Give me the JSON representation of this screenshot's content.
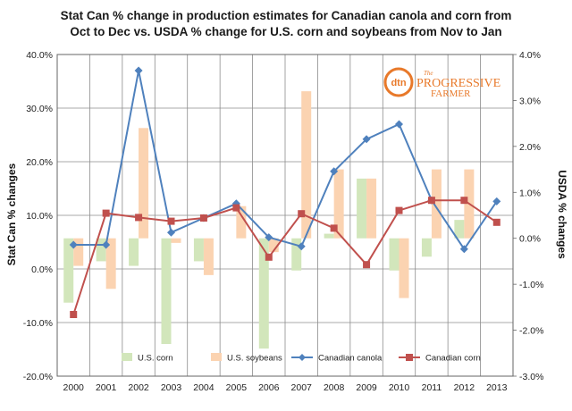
{
  "chart_data": {
    "type": "bar",
    "title_line1": "Stat Can %  change in production estimates for Canadian canola and corn from",
    "title_line2": "Oct to Dec vs. USDA %  change for U.S. corn and soybeans from Nov to Jan",
    "categories": [
      "2000",
      "2001",
      "2002",
      "2003",
      "2004",
      "2005",
      "2006",
      "2007",
      "2008",
      "2009",
      "2010",
      "2011",
      "2012",
      "2013"
    ],
    "y_left": {
      "label": "Stat Can %  changes",
      "min": -20,
      "max": 40,
      "step": 10,
      "ticks": [
        "-20.0%",
        "-10.0%",
        "0.0%",
        "10.0%",
        "20.0%",
        "30.0%",
        "40.0%"
      ]
    },
    "y_right": {
      "label": "USDA %  changes",
      "min": -3,
      "max": 4,
      "step": 1,
      "ticks": [
        "-3.0%",
        "-2.0%",
        "-1.0%",
        "0.0%",
        "1.0%",
        "2.0%",
        "3.0%",
        "4.0%"
      ]
    },
    "series": [
      {
        "name": "U.S. corn",
        "kind": "bar",
        "axis": "right",
        "color": "#d2e6bb",
        "values": [
          -1.4,
          -0.5,
          -0.6,
          -2.3,
          -0.5,
          0.0,
          -2.4,
          -0.7,
          0.1,
          1.3,
          -0.7,
          -0.4,
          0.4,
          0.0
        ]
      },
      {
        "name": "U.S. soybeans",
        "kind": "bar",
        "axis": "right",
        "color": "#fbd3b1",
        "values": [
          -0.6,
          -1.1,
          2.4,
          -0.1,
          -0.8,
          0.7,
          -0.3,
          3.2,
          1.5,
          1.3,
          -1.3,
          1.5,
          1.5,
          0.0
        ]
      },
      {
        "name": "Canadian canola",
        "kind": "line",
        "axis": "left",
        "color": "#4f81bd",
        "marker": "diamond",
        "values": [
          4.5,
          4.5,
          37.0,
          6.8,
          9.5,
          12.2,
          5.9,
          4.2,
          18.2,
          24.2,
          27.0,
          12.8,
          3.7,
          12.6
        ]
      },
      {
        "name": "Canadian corn",
        "kind": "line",
        "axis": "left",
        "color": "#c0504d",
        "marker": "square",
        "values": [
          -8.5,
          10.4,
          9.6,
          8.9,
          9.5,
          11.4,
          2.2,
          10.3,
          7.6,
          0.8,
          10.9,
          12.8,
          12.8,
          8.7
        ]
      }
    ],
    "legend_position": "bottom-inside",
    "grid": true,
    "logo": {
      "mark": "dtn",
      "line1": "The",
      "line2": "PROGRESSIVE",
      "line3": "FARMER"
    }
  }
}
